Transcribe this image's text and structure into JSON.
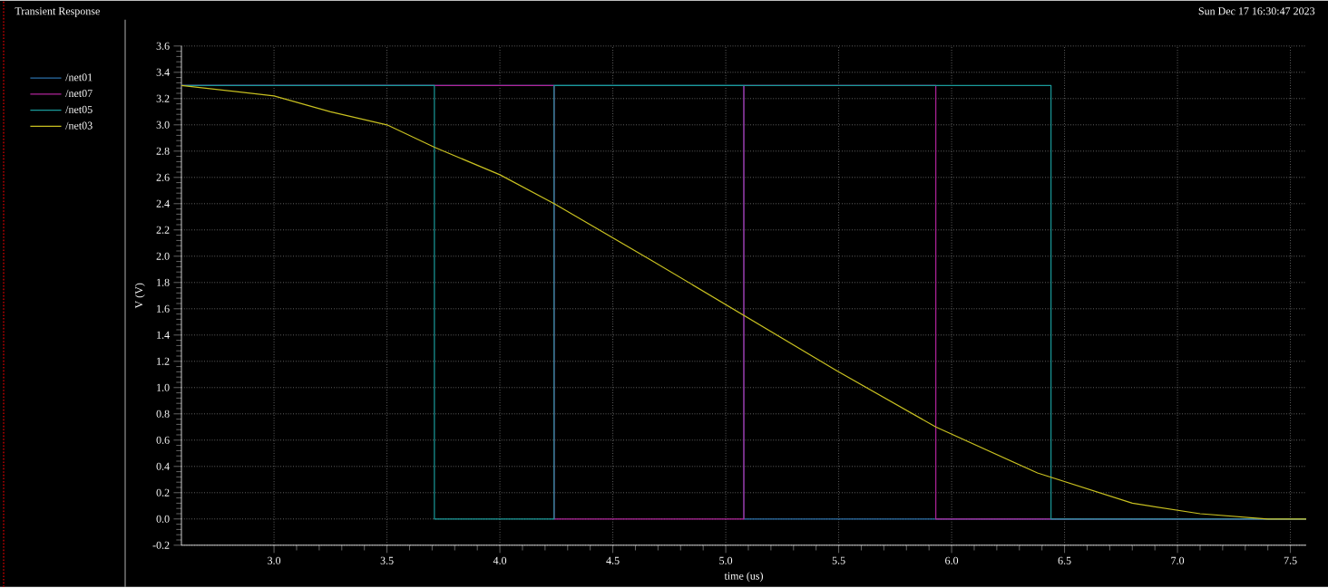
{
  "chart_data": {
    "type": "step",
    "title": "Transient Response",
    "annotations": [
      "Sun Dec 17 16:30:47 2023"
    ],
    "xlabel": "time (us)",
    "ylabel": "V (V)",
    "xlim": [
      2.59,
      7.57
    ],
    "ylim": [
      -0.2,
      3.6
    ],
    "xticks": [
      {
        "value": 3,
        "label": "3.0"
      },
      3.5,
      {
        "value": 4,
        "label": "4.0"
      },
      4.5,
      {
        "value": 5,
        "label": "5.0"
      },
      5.5,
      {
        "value": 6,
        "label": "6.0"
      },
      6.5,
      {
        "value": 7,
        "label": "7.0"
      },
      7.5
    ],
    "yticks": [
      -0.2,
      {
        "value": 0,
        "label": "0.0"
      },
      0.2,
      0.4,
      0.6,
      0.8,
      {
        "value": 1,
        "label": "1.0"
      },
      1.2,
      1.4,
      1.6,
      1.8,
      {
        "value": 2,
        "label": "2.0"
      },
      2.2,
      2.4,
      2.6,
      2.8,
      {
        "value": 3,
        "label": "3.0"
      },
      3.2,
      3.4,
      3.6
    ],
    "grid": true,
    "legend": "left",
    "line_style": "solid",
    "marker": "none",
    "series": [
      {
        "name": "/net01",
        "color": "#2a6fa8",
        "x": [
          2.59,
          5.08,
          7.57
        ],
        "values": [
          3.3,
          0,
          0
        ]
      },
      {
        "name": "/net07",
        "color": "#b0249a",
        "x": [
          2.59,
          4.24,
          5.08,
          5.93,
          7.57
        ],
        "values": [
          3.3,
          0,
          3.3,
          0,
          0
        ]
      },
      {
        "name": "/net05",
        "color": "#1a9a9a",
        "x": [
          2.59,
          3.71,
          4.24,
          6.44,
          7.57
        ],
        "values": [
          3.3,
          0,
          3.3,
          0,
          0
        ]
      },
      {
        "name": "/net03",
        "color": "#c8c020",
        "type": "line",
        "x": [
          2.59,
          3.0,
          3.25,
          3.5,
          3.71,
          4.0,
          4.24,
          4.67,
          5.08,
          5.49,
          5.93,
          6.38,
          6.8,
          7.1,
          7.4,
          7.57
        ],
        "values": [
          3.3,
          3.22,
          3.1,
          3.0,
          2.83,
          2.62,
          2.4,
          1.97,
          1.55,
          1.13,
          0.7,
          0.35,
          0.12,
          0.04,
          0,
          0
        ]
      }
    ]
  }
}
